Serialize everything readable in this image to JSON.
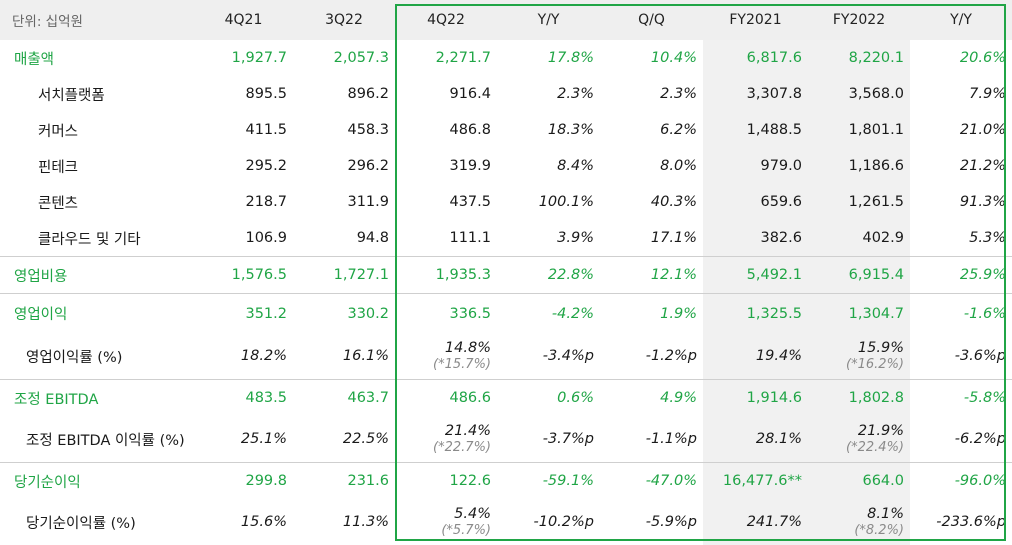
{
  "header": {
    "unit_label": "단위: 십억원",
    "columns": [
      "4Q21",
      "3Q22",
      "4Q22",
      "Y/Y",
      "Q/Q",
      "FY2021",
      "FY2022",
      "Y/Y"
    ]
  },
  "rows": [
    {
      "label": "매출액",
      "values": [
        "1,927.7",
        "2,057.3",
        "2,271.7",
        "17.8%",
        "10.4%",
        "6,817.6",
        "8,220.1",
        "20.6%"
      ]
    },
    {
      "label": "서치플랫폼",
      "values": [
        "895.5",
        "896.2",
        "916.4",
        "2.3%",
        "2.3%",
        "3,307.8",
        "3,568.0",
        "7.9%"
      ]
    },
    {
      "label": "커머스",
      "values": [
        "411.5",
        "458.3",
        "486.8",
        "18.3%",
        "6.2%",
        "1,488.5",
        "1,801.1",
        "21.0%"
      ]
    },
    {
      "label": "핀테크",
      "values": [
        "295.2",
        "296.2",
        "319.9",
        "8.4%",
        "8.0%",
        "979.0",
        "1,186.6",
        "21.2%"
      ]
    },
    {
      "label": "콘텐츠",
      "values": [
        "218.7",
        "311.9",
        "437.5",
        "100.1%",
        "40.3%",
        "659.6",
        "1,261.5",
        "91.3%"
      ]
    },
    {
      "label": "클라우드 및 기타",
      "values": [
        "106.9",
        "94.8",
        "111.1",
        "3.9%",
        "17.1%",
        "382.6",
        "402.9",
        "5.3%"
      ]
    },
    {
      "label": "영업비용",
      "values": [
        "1,576.5",
        "1,727.1",
        "1,935.3",
        "22.8%",
        "12.1%",
        "5,492.1",
        "6,915.4",
        "25.9%"
      ]
    },
    {
      "label": "영업이익",
      "values": [
        "351.2",
        "330.2",
        "336.5",
        "-4.2%",
        "1.9%",
        "1,325.5",
        "1,304.7",
        "-1.6%"
      ]
    },
    {
      "label": "영업이익률 (%)",
      "values": [
        "18.2%",
        "16.1%",
        "14.8%",
        "-3.4%p",
        "-1.2%p",
        "19.4%",
        "15.9%",
        "-3.6%p"
      ],
      "notes": {
        "q4": "(*15.7%)",
        "fy22": "(*16.2%)"
      }
    },
    {
      "label": "조정 EBITDA",
      "values": [
        "483.5",
        "463.7",
        "486.6",
        "0.6%",
        "4.9%",
        "1,914.6",
        "1,802.8",
        "-5.8%"
      ]
    },
    {
      "label": "조정 EBITDA 이익률 (%)",
      "values": [
        "25.1%",
        "22.5%",
        "21.4%",
        "-3.7%p",
        "-1.1%p",
        "28.1%",
        "21.9%",
        "-6.2%p"
      ],
      "notes": {
        "q4": "(*22.7%)",
        "fy22": "(*22.4%)"
      }
    },
    {
      "label": "당기순이익",
      "values": [
        "299.8",
        "231.6",
        "122.6",
        "-59.1%",
        "-47.0%",
        "16,477.6**",
        "664.0",
        "-96.0%"
      ]
    },
    {
      "label": "당기순이익률 (%)",
      "values": [
        "15.6%",
        "11.3%",
        "5.4%",
        "-10.2%p",
        "-5.9%p",
        "241.7%",
        "8.1%",
        "-233.6%p"
      ],
      "notes": {
        "q4": "(*5.7%)",
        "fy22": "(*8.2%)"
      }
    }
  ],
  "colors": {
    "accent": "#20a546",
    "header_bg": "#efefef",
    "fy_bg": "#f1f1f1"
  }
}
